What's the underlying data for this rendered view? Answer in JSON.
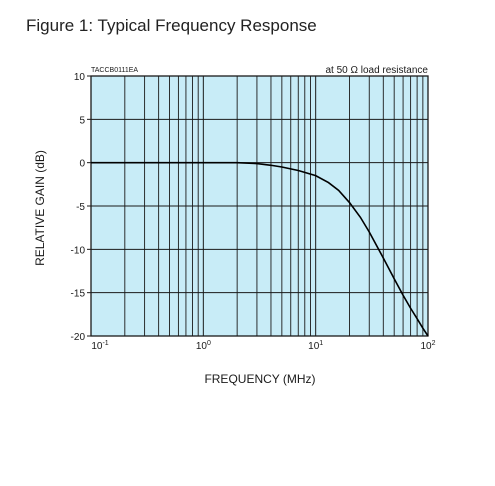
{
  "figure": {
    "title": "Figure 1: Typical Frequency Response"
  },
  "chart_data": {
    "type": "line",
    "xlabel": "FREQUENCY (MHz)",
    "ylabel": "RELATIVE GAIN (dB)",
    "xscale": "log",
    "xlim": [
      0.1,
      100
    ],
    "ylim": [
      -20,
      10
    ],
    "x_ticks": [
      {
        "value": 0.1,
        "base": "10",
        "exp": "-1"
      },
      {
        "value": 1,
        "base": "10",
        "exp": "0"
      },
      {
        "value": 10,
        "base": "10",
        "exp": "1"
      },
      {
        "value": 100,
        "base": "10",
        "exp": "2"
      }
    ],
    "y_ticks": [
      10,
      5,
      0,
      -5,
      -10,
      -15,
      -20
    ],
    "y_tick_labels": [
      "10",
      "5",
      "0",
      "-5",
      "-10",
      "-15",
      "-20"
    ],
    "grid": true,
    "code_label": "TACCB0111EA",
    "annotation": "at 50 Ω load resistance",
    "series": [
      {
        "x": [
          0.1,
          0.5,
          1,
          1.5,
          2,
          3,
          4,
          5,
          7,
          10,
          13,
          16,
          20,
          25,
          30,
          40,
          50,
          60,
          70,
          80,
          90,
          100
        ],
        "y": [
          0,
          0,
          0,
          0,
          0,
          -0.1,
          -0.3,
          -0.5,
          -0.9,
          -1.5,
          -2.3,
          -3.2,
          -4.6,
          -6.3,
          -8.0,
          -11.0,
          -13.4,
          -15.3,
          -16.8,
          -18.0,
          -19.1,
          -20.0
        ]
      }
    ],
    "colors": {
      "plot_background": "#c8ecf7",
      "grid": "#1a1a1a",
      "line": "#000000"
    }
  }
}
